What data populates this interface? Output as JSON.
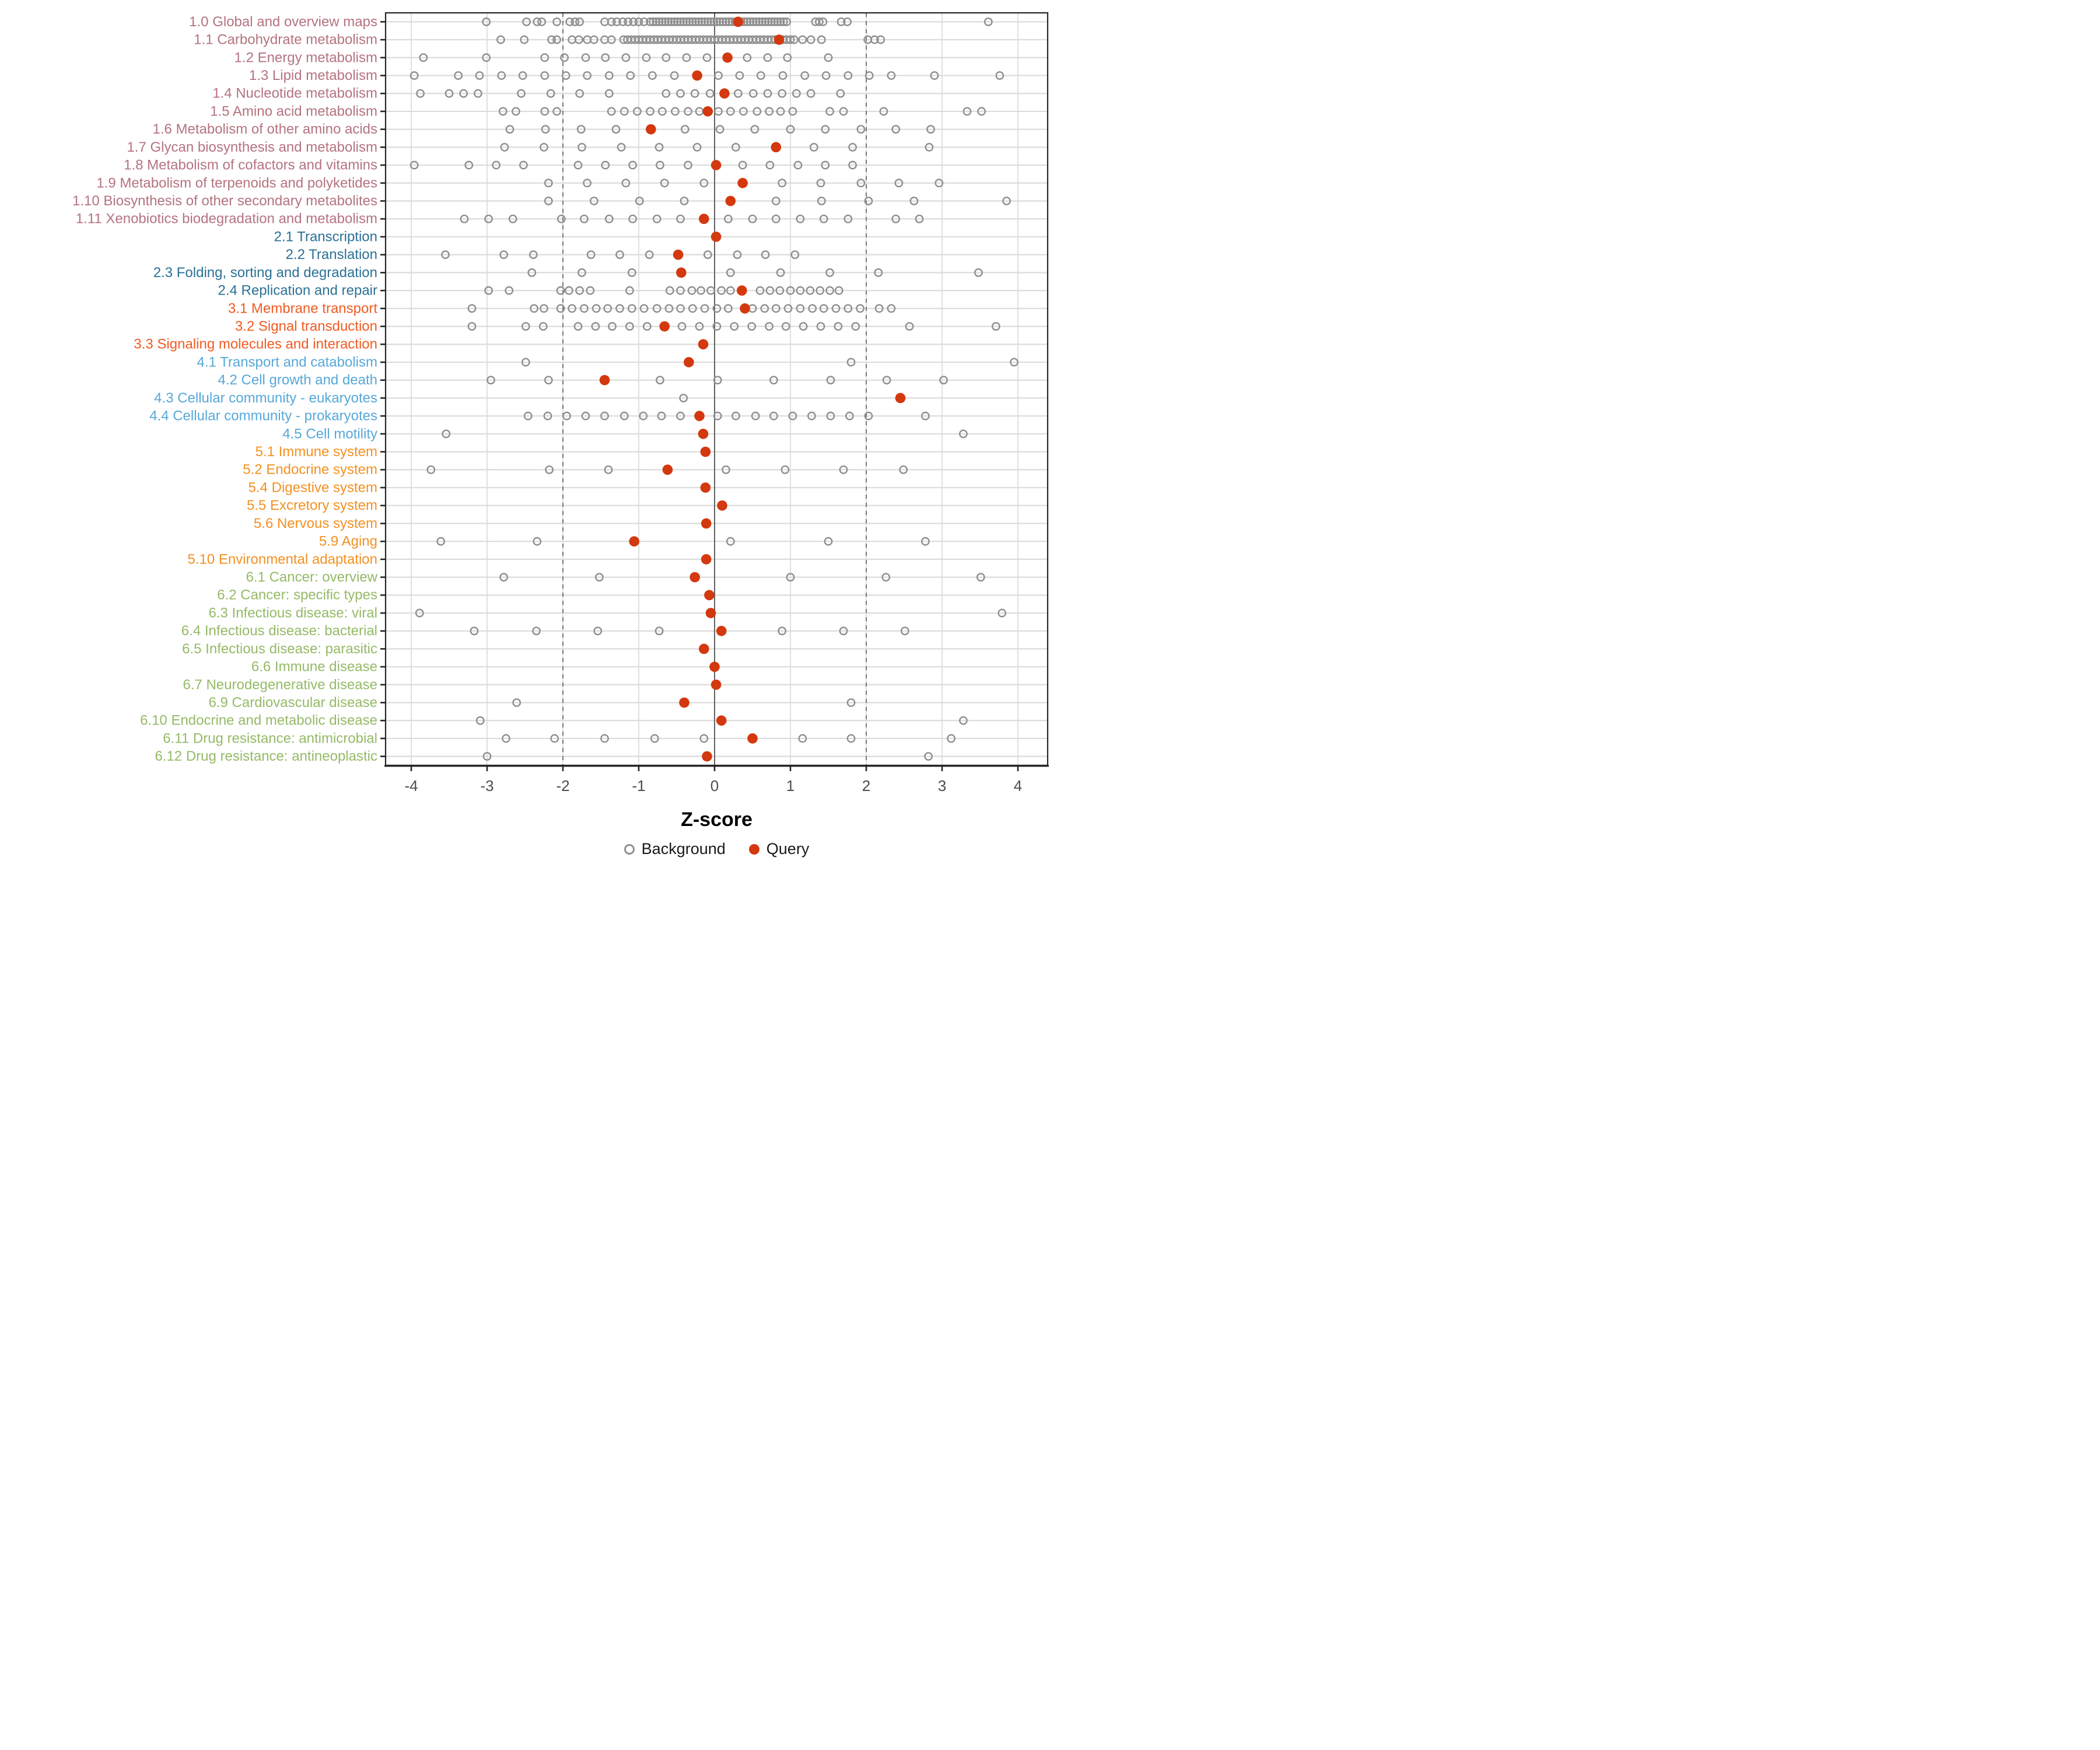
{
  "chart": {
    "xlabel": "Z-score",
    "x_ticks": [
      -4,
      -3,
      -2,
      -1,
      0,
      1,
      2,
      3,
      4
    ],
    "x_range": [
      -4.35,
      4.4
    ],
    "ref_line_solid": 0,
    "ref_lines_dashed": [
      -2,
      2
    ],
    "legend": {
      "background_label": "Background",
      "query_label": "Query"
    },
    "colors": {
      "query": "#d4380e",
      "background_stroke": "#8f8f8f",
      "grid": "#dcdcdc",
      "zero_line": "#5a5a5a",
      "dashed_line": "#6b6b6b",
      "axis_text": "#4d4d4d",
      "axis_line": "#262626",
      "groups": {
        "1": "#b4737f",
        "2": "#2b7196",
        "3": "#f05b22",
        "4": "#57a8d8",
        "5": "#f39123",
        "6": "#95ba67"
      }
    }
  },
  "chart_data": {
    "type": "scatter",
    "xlabel": "Z-score",
    "xlim": [
      -4.35,
      4.4
    ],
    "legend_position": "bottom",
    "series_legend": [
      "Background",
      "Query"
    ],
    "rows": [
      {
        "label": "1.0 Global and overview maps",
        "group": "1",
        "query": 0.31,
        "background": [
          -3.01,
          -2.48,
          -2.34,
          -2.28,
          -2.08,
          -1.91,
          -1.84,
          -1.78,
          -1.45,
          -1.36,
          -1.29,
          -1.21,
          -1.14,
          -1.07,
          -1.0,
          -0.93,
          -0.85,
          -0.81,
          -0.77,
          -0.73,
          -0.69,
          -0.65,
          -0.61,
          -0.57,
          -0.53,
          -0.49,
          -0.45,
          -0.41,
          -0.37,
          -0.33,
          -0.29,
          -0.25,
          -0.21,
          -0.17,
          -0.13,
          -0.09,
          -0.05,
          -0.01,
          0.03,
          0.07,
          0.11,
          0.15,
          0.19,
          0.23,
          0.27,
          0.31,
          0.35,
          0.39,
          0.43,
          0.47,
          0.51,
          0.55,
          0.59,
          0.63,
          0.67,
          0.71,
          0.75,
          0.79,
          0.83,
          0.87,
          0.91,
          0.95,
          1.33,
          1.38,
          1.43,
          1.67,
          1.75,
          3.61
        ]
      },
      {
        "label": "1.1 Carbohydrate metabolism",
        "group": "1",
        "query": 0.85,
        "background": [
          -2.82,
          -2.51,
          -2.15,
          -2.08,
          -1.88,
          -1.79,
          -1.68,
          -1.59,
          -1.45,
          -1.36,
          -1.2,
          -1.15,
          -1.1,
          -1.05,
          -1.0,
          -0.95,
          -0.9,
          -0.85,
          -0.8,
          -0.75,
          -0.7,
          -0.65,
          -0.6,
          -0.55,
          -0.5,
          -0.45,
          -0.4,
          -0.35,
          -0.3,
          -0.25,
          -0.2,
          -0.15,
          -0.1,
          -0.05,
          0.0,
          0.05,
          0.1,
          0.15,
          0.2,
          0.25,
          0.3,
          0.35,
          0.4,
          0.45,
          0.5,
          0.55,
          0.6,
          0.65,
          0.7,
          0.75,
          0.8,
          0.85,
          0.9,
          0.95,
          1.0,
          1.05,
          1.16,
          1.27,
          1.41,
          2.02,
          2.11,
          2.19
        ]
      },
      {
        "label": "1.2 Energy metabolism",
        "group": "1",
        "query": 0.17,
        "background": [
          -3.84,
          -3.01,
          -2.24,
          -1.98,
          -1.7,
          -1.44,
          -1.17,
          -0.9,
          -0.64,
          -0.37,
          -0.1,
          0.43,
          0.7,
          0.96,
          1.5
        ]
      },
      {
        "label": "1.3 Lipid metabolism",
        "group": "1",
        "query": -0.23,
        "background": [
          -3.96,
          -3.38,
          -3.1,
          -2.81,
          -2.53,
          -2.24,
          -1.96,
          -1.68,
          -1.39,
          -1.11,
          -0.82,
          -0.53,
          0.05,
          0.33,
          0.61,
          0.9,
          1.19,
          1.47,
          1.76,
          2.04,
          2.33,
          2.9,
          3.76
        ]
      },
      {
        "label": "1.4 Nucleotide metabolism",
        "group": "1",
        "query": 0.13,
        "background": [
          -3.88,
          -3.5,
          -3.31,
          -3.12,
          -2.55,
          -2.16,
          -1.78,
          -1.39,
          -0.64,
          -0.45,
          -0.26,
          -0.06,
          0.31,
          0.51,
          0.7,
          0.89,
          1.08,
          1.27,
          1.66
        ]
      },
      {
        "label": "1.5 Amino acid metabolism",
        "group": "1",
        "query": -0.09,
        "background": [
          -2.79,
          -2.62,
          -2.24,
          -2.08,
          -1.36,
          -1.19,
          -1.02,
          -0.85,
          -0.69,
          -0.52,
          -0.35,
          -0.2,
          0.05,
          0.21,
          0.38,
          0.56,
          0.72,
          0.87,
          1.03,
          1.52,
          1.7,
          2.23,
          3.33,
          3.52
        ]
      },
      {
        "label": "1.6 Metabolism of other amino acids",
        "group": "1",
        "query": -0.84,
        "background": [
          -2.7,
          -2.23,
          -1.76,
          -1.3,
          -0.39,
          0.07,
          0.53,
          1.0,
          1.46,
          1.93,
          2.39,
          2.85
        ]
      },
      {
        "label": "1.7 Glycan biosynthesis and metabolism",
        "group": "1",
        "query": 0.81,
        "background": [
          -2.77,
          -2.25,
          -1.75,
          -1.23,
          -0.73,
          -0.23,
          0.28,
          1.31,
          1.82,
          2.83
        ]
      },
      {
        "label": "1.8 Metabolism of cofactors and vitamins",
        "group": "1",
        "query": 0.02,
        "background": [
          -3.96,
          -3.24,
          -2.88,
          -2.52,
          -1.8,
          -1.44,
          -1.08,
          -0.72,
          -0.35,
          0.37,
          0.73,
          1.1,
          1.46,
          1.82
        ]
      },
      {
        "label": "1.9 Metabolism of terpenoids and polyketides",
        "group": "1",
        "query": 0.37,
        "background": [
          -2.19,
          -1.68,
          -1.17,
          -0.66,
          -0.14,
          0.89,
          1.4,
          1.93,
          2.43,
          2.96
        ]
      },
      {
        "label": "1.10 Biosynthesis of other secondary metabolites",
        "group": "1",
        "query": 0.21,
        "background": [
          -2.19,
          -1.59,
          -0.99,
          -0.4,
          0.81,
          1.41,
          2.03,
          2.63,
          3.85
        ]
      },
      {
        "label": "1.11 Xenobiotics biodegradation and metabolism",
        "group": "1",
        "query": -0.14,
        "background": [
          -3.3,
          -2.98,
          -2.66,
          -2.02,
          -1.72,
          -1.39,
          -1.08,
          -0.76,
          -0.45,
          0.18,
          0.5,
          0.81,
          1.13,
          1.44,
          1.76,
          2.39,
          2.7
        ]
      },
      {
        "label": "2.1 Transcription",
        "group": "2",
        "query": 0.02,
        "background": []
      },
      {
        "label": "2.2 Translation",
        "group": "2",
        "query": -0.48,
        "background": [
          -3.55,
          -2.78,
          -2.39,
          -1.63,
          -1.25,
          -0.86,
          -0.09,
          0.3,
          0.67,
          1.06
        ]
      },
      {
        "label": "2.3 Folding, sorting and degradation",
        "group": "2",
        "query": -0.44,
        "background": [
          -2.41,
          -1.75,
          -1.09,
          0.21,
          0.87,
          1.52,
          2.16,
          3.48
        ]
      },
      {
        "label": "2.4 Replication and repair",
        "group": "2",
        "query": 0.36,
        "background": [
          -2.98,
          -2.71,
          -2.03,
          -1.92,
          -1.78,
          -1.64,
          -1.12,
          -0.59,
          -0.45,
          -0.3,
          -0.18,
          -0.05,
          0.09,
          0.21,
          0.6,
          0.73,
          0.86,
          1.0,
          1.13,
          1.26,
          1.39,
          1.52,
          1.64
        ]
      },
      {
        "label": "3.1 Membrane transport",
        "group": "3",
        "query": 0.4,
        "background": [
          -3.2,
          -2.38,
          -2.25,
          -2.03,
          -1.88,
          -1.72,
          -1.56,
          -1.41,
          -1.25,
          -1.09,
          -0.93,
          -0.76,
          -0.6,
          -0.45,
          -0.29,
          -0.13,
          0.03,
          0.18,
          0.5,
          0.66,
          0.81,
          0.97,
          1.13,
          1.29,
          1.44,
          1.6,
          1.76,
          1.92,
          2.17,
          2.33
        ]
      },
      {
        "label": "3.2 Signal transduction",
        "group": "3",
        "query": -0.66,
        "background": [
          -3.2,
          -2.49,
          -2.26,
          -1.8,
          -1.57,
          -1.35,
          -1.12,
          -0.89,
          -0.43,
          -0.2,
          0.03,
          0.26,
          0.49,
          0.72,
          0.94,
          1.17,
          1.4,
          1.63,
          1.86,
          2.57,
          3.71
        ]
      },
      {
        "label": "3.3 Signaling molecules and interaction",
        "group": "3",
        "query": -0.15,
        "background": []
      },
      {
        "label": "4.1 Transport and catabolism",
        "group": "4",
        "query": -0.34,
        "background": [
          -2.49,
          1.8,
          3.95
        ]
      },
      {
        "label": "4.2 Cell growth and death",
        "group": "4",
        "query": -1.45,
        "background": [
          -2.95,
          -2.19,
          -0.72,
          0.04,
          0.78,
          1.53,
          2.27,
          3.02
        ]
      },
      {
        "label": "4.3 Cellular community - eukaryotes",
        "group": "4",
        "query": 2.45,
        "background": [
          -0.41
        ]
      },
      {
        "label": "4.4 Cellular community - prokaryotes",
        "group": "4",
        "query": -0.2,
        "background": [
          -2.46,
          -2.2,
          -1.95,
          -1.7,
          -1.45,
          -1.19,
          -0.94,
          -0.7,
          -0.45,
          0.04,
          0.28,
          0.54,
          0.78,
          1.03,
          1.28,
          1.53,
          1.78,
          2.03,
          2.78
        ]
      },
      {
        "label": "4.5 Cell motility",
        "group": "4",
        "query": -0.15,
        "background": [
          -3.54,
          3.28
        ]
      },
      {
        "label": "5.1 Immune system",
        "group": "5",
        "query": -0.12,
        "background": []
      },
      {
        "label": "5.2 Endocrine system",
        "group": "5",
        "query": -0.62,
        "background": [
          -3.74,
          -2.18,
          -1.4,
          0.15,
          0.93,
          1.7,
          2.49
        ]
      },
      {
        "label": "5.4 Digestive system",
        "group": "5",
        "query": -0.12,
        "background": []
      },
      {
        "label": "5.5 Excretory system",
        "group": "5",
        "query": 0.1,
        "background": []
      },
      {
        "label": "5.6 Nervous system",
        "group": "5",
        "query": -0.11,
        "background": []
      },
      {
        "label": "5.9 Aging",
        "group": "5",
        "query": -1.06,
        "background": [
          -3.61,
          -2.34,
          0.21,
          1.5,
          2.78
        ]
      },
      {
        "label": "5.10 Environmental adaptation",
        "group": "5",
        "query": -0.11,
        "background": []
      },
      {
        "label": "6.1 Cancer: overview",
        "group": "6",
        "query": -0.26,
        "background": [
          -2.78,
          -1.52,
          1.0,
          2.26,
          3.51
        ]
      },
      {
        "label": "6.2 Cancer: specific types",
        "group": "6",
        "query": -0.07,
        "background": []
      },
      {
        "label": "6.3 Infectious disease: viral",
        "group": "6",
        "query": -0.05,
        "background": [
          -3.89,
          3.79
        ]
      },
      {
        "label": "6.4 Infectious disease: bacterial",
        "group": "6",
        "query": 0.09,
        "background": [
          -3.17,
          -2.35,
          -1.54,
          -0.73,
          0.89,
          1.7,
          2.51
        ]
      },
      {
        "label": "6.5 Infectious disease: parasitic",
        "group": "6",
        "query": -0.14,
        "background": []
      },
      {
        "label": "6.6 Immune disease",
        "group": "6",
        "query": 0.0,
        "background": []
      },
      {
        "label": "6.7 Neurodegenerative disease",
        "group": "6",
        "query": 0.02,
        "background": []
      },
      {
        "label": "6.9 Cardiovascular disease",
        "group": "6",
        "query": -0.4,
        "background": [
          -2.61,
          1.8
        ]
      },
      {
        "label": "6.10 Endocrine and metabolic disease",
        "group": "6",
        "query": 0.09,
        "background": [
          -3.09,
          3.28
        ]
      },
      {
        "label": "6.11 Drug resistance: antimicrobial",
        "group": "6",
        "query": 0.5,
        "background": [
          -2.75,
          -2.11,
          -1.45,
          -0.79,
          -0.14,
          1.16,
          1.8,
          3.12
        ]
      },
      {
        "label": "6.12 Drug resistance: antineoplastic",
        "group": "6",
        "query": -0.1,
        "background": [
          -3.0,
          2.82
        ]
      }
    ]
  }
}
